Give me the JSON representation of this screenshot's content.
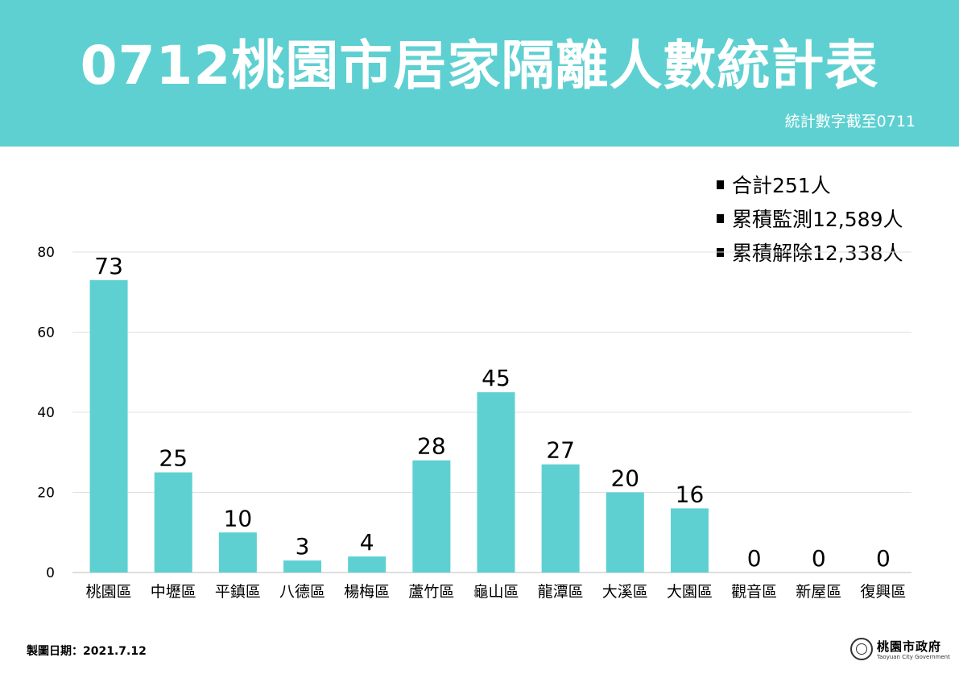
{
  "header": {
    "title": "0712桃園市居家隔離人數統計表",
    "subtitle": "統計數字截至0711"
  },
  "summary": [
    {
      "label": "合計251人"
    },
    {
      "label": "累積監測12,589人"
    },
    {
      "label": "累積解除12,338人"
    }
  ],
  "chart_data": {
    "type": "bar",
    "categories": [
      "桃園區",
      "中壢區",
      "平鎮區",
      "八德區",
      "楊梅區",
      "蘆竹區",
      "龜山區",
      "龍潭區",
      "大溪區",
      "大園區",
      "觀音區",
      "新屋區",
      "復興區"
    ],
    "values": [
      73,
      25,
      10,
      3,
      4,
      28,
      45,
      27,
      20,
      16,
      0,
      0,
      0
    ],
    "ylim": [
      0,
      80
    ],
    "yticks": [
      0,
      20,
      40,
      60,
      80
    ],
    "grid": true,
    "bar_color": "#5ED0D1",
    "data_labels": true
  },
  "footer": {
    "date_label": "製圖日期：2021.7.12",
    "logo_name": "桃園市政府",
    "logo_en": "Taoyuan City Government",
    "logo_icon": "city-seal-icon"
  },
  "colors": {
    "header_bg": "#5ED0D1",
    "bar": "#5ED0D1",
    "grid": "#e0e0e0"
  }
}
